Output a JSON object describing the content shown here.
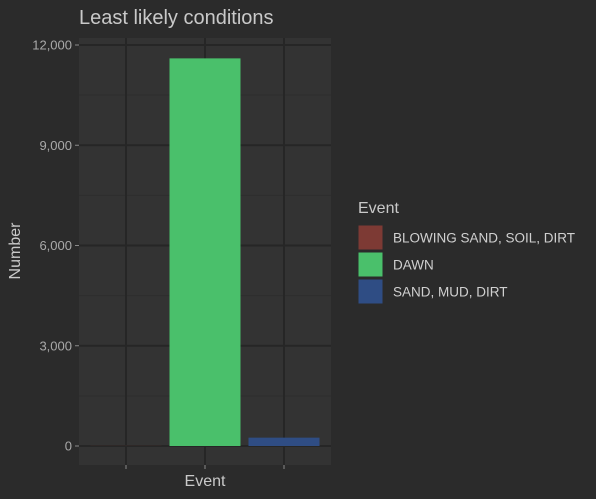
{
  "colors": {
    "background": "#2b2b2b",
    "panel": "#333333",
    "grid_major": "#262626",
    "grid_minor": "#2e2e2e",
    "text": "#c9c9c9",
    "tick_text": "#a9a9a9"
  },
  "chart_data": {
    "type": "bar",
    "title": "Least likely conditions",
    "xlabel": "Event",
    "ylabel": "Number",
    "ylim": [
      0,
      12000
    ],
    "yticks": [
      0,
      3000,
      6000,
      9000,
      12000
    ],
    "ytick_labels": [
      "0",
      "3,000",
      "6,000",
      "9,000",
      "12,000"
    ],
    "grid": true,
    "legend_position": "right",
    "legend_title": "Event",
    "series": [
      {
        "name": "BLOWING SAND, SOIL, DIRT",
        "value": 3,
        "color": "#7d3a34"
      },
      {
        "name": "DAWN",
        "value": 11600,
        "color": "#4ac06b"
      },
      {
        "name": "SAND, MUD, DIRT",
        "value": 250,
        "color": "#2f4d84"
      }
    ]
  }
}
